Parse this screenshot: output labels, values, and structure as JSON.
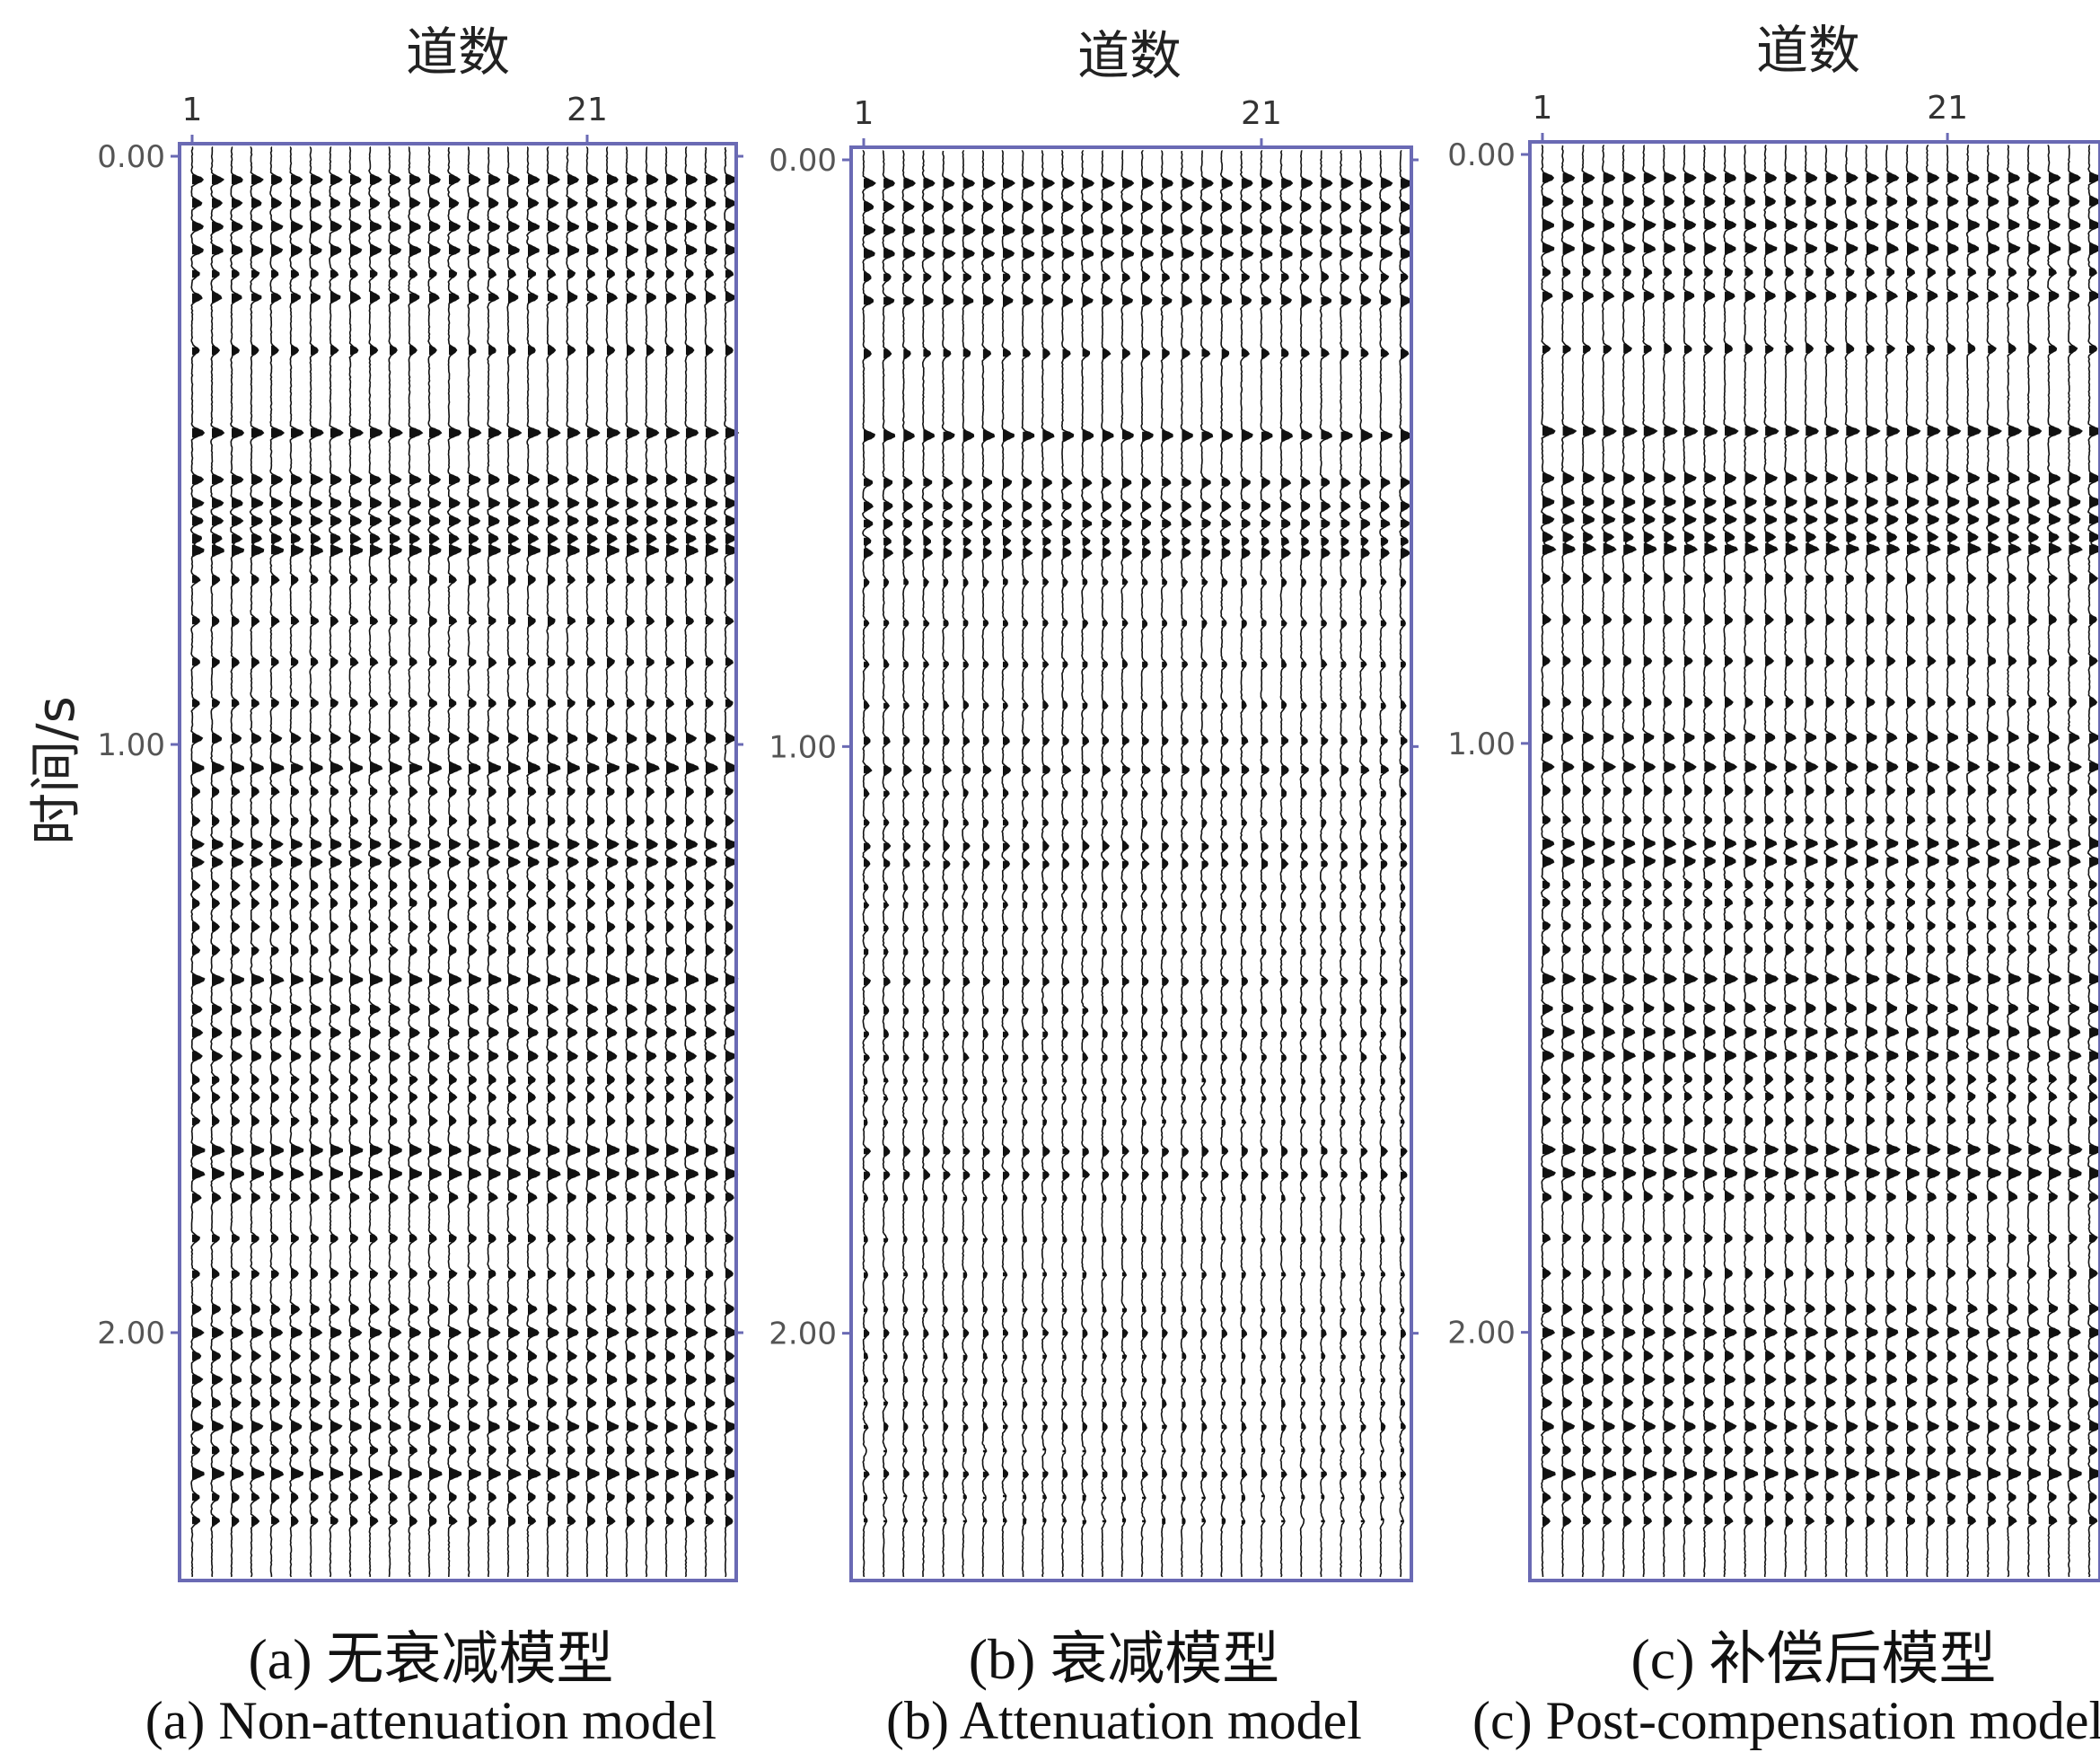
{
  "shared": {
    "x_axis_title": "道数",
    "y_axis_title": "时间/s"
  },
  "captions": [
    {
      "zh": "(a) 无衰减模型",
      "en": "(a) Non-attenuation model"
    },
    {
      "zh": "(b) 衰减模型",
      "en": "(b) Attenuation model"
    },
    {
      "zh": "(c) 补偿后模型",
      "en": "(c) Post-compensation model"
    }
  ],
  "colors": {
    "frame": "#6a6ab4",
    "trace": "#111111"
  },
  "chart_data": [
    {
      "type": "seismic_wiggle",
      "xlabel": "道数",
      "ylabel": "时间/s",
      "x_ticks": [
        1,
        21
      ],
      "x_tick_labels": [
        "1",
        "21"
      ],
      "y_ticks": [
        0,
        1,
        2
      ],
      "y_tick_labels": [
        "0.00",
        "1.00",
        "2.00"
      ],
      "ylim": [
        0,
        2.4
      ],
      "trace_count": 28,
      "event_times": [
        0.04,
        0.08,
        0.12,
        0.16,
        0.2,
        0.24,
        0.33,
        0.47,
        0.55,
        0.59,
        0.62,
        0.65,
        0.67,
        0.72,
        0.79,
        0.86,
        0.93,
        0.99,
        1.04,
        1.08,
        1.13,
        1.17,
        1.2,
        1.24,
        1.27,
        1.31,
        1.35,
        1.4,
        1.45,
        1.49,
        1.53,
        1.57,
        1.6,
        1.64,
        1.69,
        1.73,
        1.77,
        1.84,
        1.9,
        1.96,
        2.0,
        2.04,
        2.08,
        2.12,
        2.16,
        2.2,
        2.24,
        2.28,
        2.32
      ],
      "event_amplitudes": [
        0.9,
        0.8,
        0.9,
        0.9,
        0.6,
        0.8,
        0.6,
        1.0,
        0.9,
        0.9,
        0.9,
        0.8,
        1.0,
        0.6,
        0.6,
        0.6,
        0.6,
        0.8,
        1.0,
        0.6,
        0.6,
        0.9,
        0.9,
        0.6,
        0.6,
        0.6,
        0.6,
        1.0,
        0.8,
        0.8,
        0.8,
        0.6,
        0.6,
        0.6,
        1.0,
        1.0,
        0.7,
        0.6,
        0.6,
        0.7,
        0.9,
        0.7,
        0.8,
        0.7,
        0.9,
        0.6,
        1.0,
        0.6,
        0.6
      ],
      "amplitude_decay_q": null
    },
    {
      "type": "seismic_wiggle",
      "xlabel": "道数",
      "ylabel": "",
      "x_ticks": [
        1,
        21
      ],
      "x_tick_labels": [
        "1",
        "21"
      ],
      "y_ticks": [
        0,
        1,
        2
      ],
      "y_tick_labels": [
        "0.00",
        "1.00",
        "2.00"
      ],
      "ylim": [
        0,
        2.4
      ],
      "trace_count": 28,
      "event_times": [
        0.04,
        0.08,
        0.12,
        0.16,
        0.2,
        0.24,
        0.33,
        0.47,
        0.55,
        0.59,
        0.62,
        0.65,
        0.67,
        0.72,
        0.79,
        0.86,
        0.93,
        0.99,
        1.04,
        1.08,
        1.13,
        1.17,
        1.2,
        1.24,
        1.27,
        1.31,
        1.35,
        1.4,
        1.45,
        1.49,
        1.53,
        1.57,
        1.6,
        1.64,
        1.69,
        1.73,
        1.77,
        1.84,
        1.9,
        1.96,
        2.0,
        2.04,
        2.08,
        2.12,
        2.16,
        2.2,
        2.24,
        2.28,
        2.32
      ],
      "event_amplitudes": [
        0.9,
        0.8,
        0.9,
        0.9,
        0.6,
        0.8,
        0.6,
        0.9,
        0.7,
        0.7,
        0.7,
        0.6,
        0.7,
        0.4,
        0.4,
        0.4,
        0.4,
        0.5,
        0.6,
        0.4,
        0.4,
        0.5,
        0.5,
        0.35,
        0.35,
        0.35,
        0.35,
        0.5,
        0.4,
        0.4,
        0.4,
        0.3,
        0.3,
        0.3,
        0.5,
        0.5,
        0.3,
        0.3,
        0.3,
        0.3,
        0.4,
        0.3,
        0.3,
        0.3,
        0.35,
        0.25,
        0.4,
        0.25,
        0.25
      ],
      "amplitude_decay_q": "attenuated"
    },
    {
      "type": "seismic_wiggle",
      "xlabel": "道数",
      "ylabel": "",
      "x_ticks": [
        1,
        21
      ],
      "x_tick_labels": [
        "1",
        "21"
      ],
      "y_ticks": [
        0,
        1,
        2
      ],
      "y_tick_labels": [
        "0.00",
        "1.00",
        "2.00"
      ],
      "ylim": [
        0,
        2.4
      ],
      "trace_count": 28,
      "event_times": [
        0.04,
        0.08,
        0.12,
        0.16,
        0.2,
        0.24,
        0.33,
        0.47,
        0.55,
        0.59,
        0.62,
        0.65,
        0.67,
        0.72,
        0.79,
        0.86,
        0.93,
        0.99,
        1.04,
        1.08,
        1.13,
        1.17,
        1.2,
        1.24,
        1.27,
        1.31,
        1.35,
        1.4,
        1.45,
        1.49,
        1.53,
        1.57,
        1.6,
        1.64,
        1.69,
        1.73,
        1.77,
        1.84,
        1.9,
        1.96,
        2.0,
        2.04,
        2.08,
        2.12,
        2.16,
        2.2,
        2.24,
        2.28,
        2.32
      ],
      "event_amplitudes": [
        0.9,
        0.8,
        0.9,
        0.9,
        0.6,
        0.8,
        0.6,
        1.0,
        0.9,
        0.9,
        0.9,
        0.8,
        1.0,
        0.6,
        0.6,
        0.6,
        0.6,
        0.8,
        0.9,
        0.6,
        0.6,
        0.9,
        0.9,
        0.6,
        0.6,
        0.6,
        0.6,
        1.0,
        0.8,
        0.9,
        0.9,
        0.6,
        0.6,
        0.6,
        1.0,
        1.0,
        0.7,
        0.6,
        0.6,
        0.7,
        0.9,
        0.7,
        0.8,
        0.7,
        0.9,
        0.6,
        1.0,
        0.6,
        0.6
      ],
      "amplitude_decay_q": "compensated"
    }
  ]
}
